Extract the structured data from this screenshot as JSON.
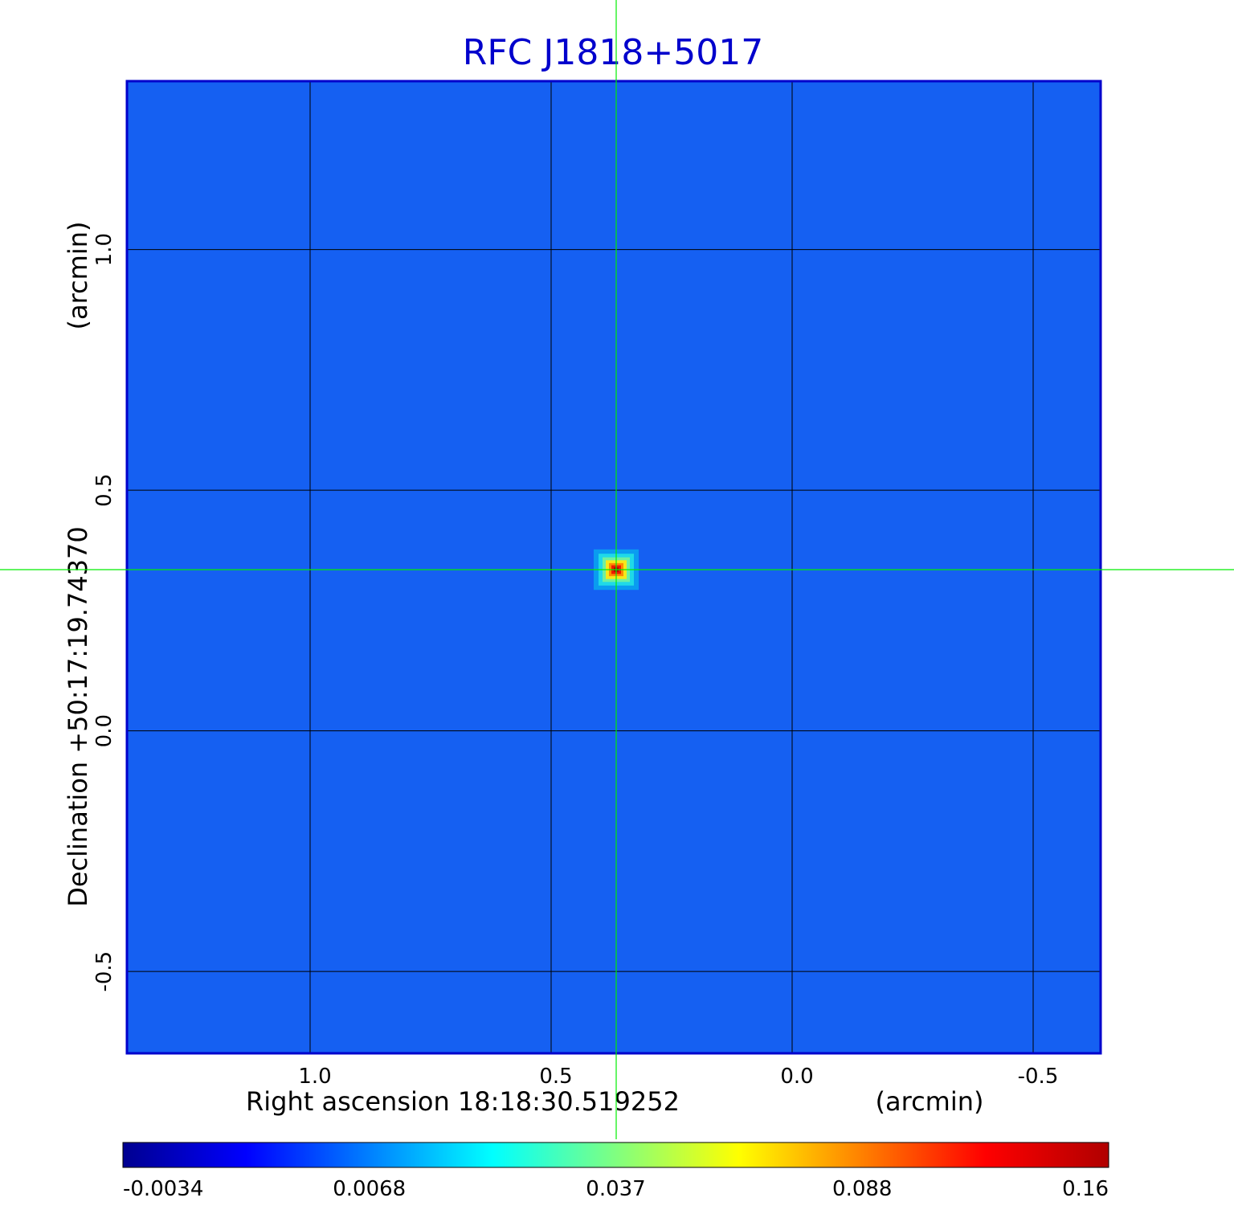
{
  "chart_data": {
    "type": "heatmap",
    "title": "RFC J1818+5017",
    "xlabel": "Right ascension  18:18:30.519252",
    "xunit": "(arcmin)",
    "ylabel": "Declination  +50:17:19.74370",
    "yunit": "(arcmin)",
    "x_ticks": [
      1.0,
      0.5,
      0.0,
      -0.5
    ],
    "x_tick_labels": [
      "1.0",
      "0.5",
      "0.0",
      "-0.5"
    ],
    "y_ticks": [
      1.0,
      0.5,
      0.0,
      -0.5
    ],
    "y_tick_labels": [
      "1.0",
      "0.5",
      "0.0",
      "-0.5"
    ],
    "xlim": [
      1.38,
      -0.64
    ],
    "ylim": [
      -0.67,
      1.35
    ],
    "x_reversed": true,
    "grid": true,
    "crosshair": {
      "x": 0.365,
      "y": 0.335
    },
    "colorbar": {
      "tick_labels": [
        "-0.0034",
        "0.0068",
        "0.037",
        "0.088",
        "0.16"
      ],
      "colors": [
        "#000090",
        "#0000ff",
        "#0080ff",
        "#00ffff",
        "#80ff80",
        "#ffff00",
        "#ff8000",
        "#ff0000",
        "#b00000"
      ]
    },
    "source_peak": {
      "x": 0.365,
      "y": 0.335,
      "value": 0.16
    },
    "background_level": 0.005,
    "colors": {
      "title": "#0000cc",
      "frame": "#0000cc",
      "background": "#1560f2",
      "grid": "#000000",
      "crosshair": "#00ee00"
    }
  }
}
